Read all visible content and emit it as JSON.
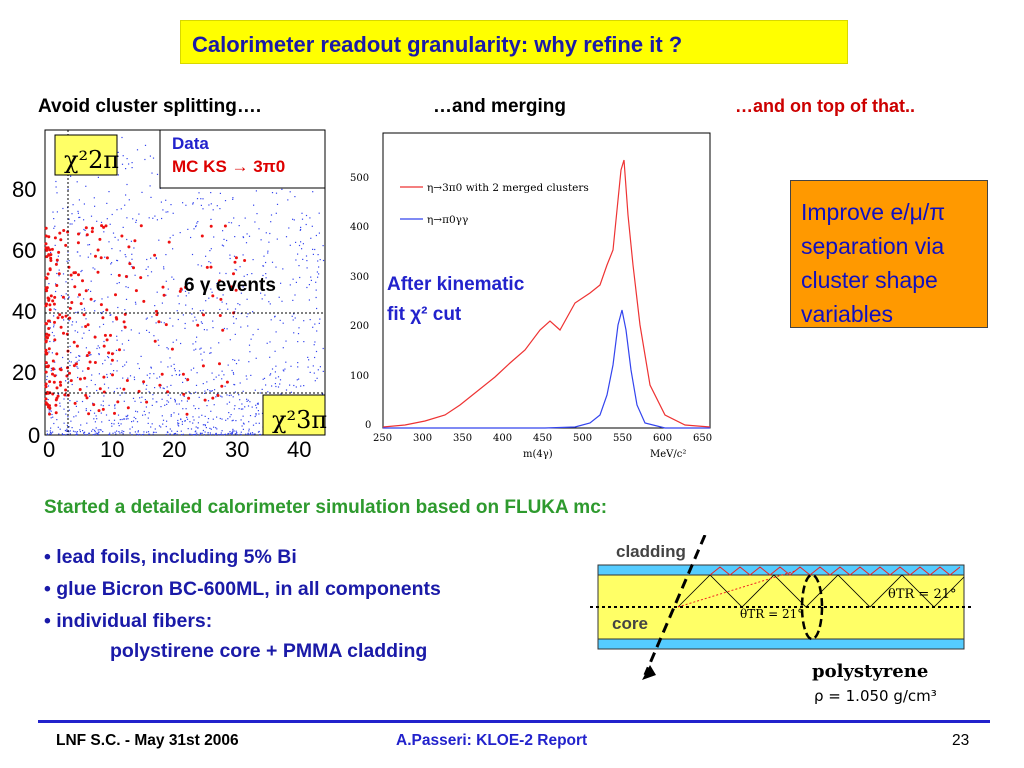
{
  "slide": {
    "title": "Calorimeter readout granularity: why refine it ?",
    "col1_heading": "Avoid cluster splitting….",
    "col2_heading": "…and merging",
    "col3_heading": "…and on top of that..",
    "colors": {
      "title_bg": "#ffff00",
      "title_text": "#1a1aa8",
      "heading3": "#cc0000",
      "green": "#2e9a2e",
      "orange_box": "#ff9900",
      "blue": "#2222cc"
    }
  },
  "plot1": {
    "y_ticks": [
      "80",
      "60",
      "40",
      "20",
      "0"
    ],
    "x_ticks": [
      "0",
      "10",
      "20",
      "30",
      "40"
    ],
    "chi_2pi": "χ²2π",
    "chi_3pi": "χ²3π",
    "legend_data": "Data",
    "legend_mc": "MC KS → 3π0",
    "events_label": "6 γ events"
  },
  "plot2": {
    "legend_red": "η→3π0 with 2 merged clusters",
    "legend_blue": "η→π0γγ",
    "y_ticks": [
      "500",
      "400",
      "300",
      "200",
      "100",
      "0"
    ],
    "x_ticks": [
      "250",
      "300",
      "350",
      "400",
      "450",
      "500",
      "550",
      "600",
      "650"
    ],
    "xlabel": "m(4γ)",
    "xunit": "MeV/c²",
    "annotation_line1": "After kinematic",
    "annotation_line2": "fit χ² cut"
  },
  "right_box": {
    "line1": "Improve e/μ/π",
    "line2": "separation via",
    "line3": "cluster shape",
    "line4": "variables"
  },
  "simulation": {
    "heading": "Started a detailed calorimeter simulation based on FLUKA mc:",
    "bullets": [
      "lead foils, including 5% Bi",
      "glue Bicron BC-600ML, in all components",
      "individual fibers:"
    ],
    "sub_bullet": "polystirene core + PMMA cladding"
  },
  "fiber_diagram": {
    "cladding_label": "cladding",
    "core_label": "core",
    "angle_label_1": "θTR = 21°",
    "angle_label_2": "θTR = 21°",
    "material": "polystyrene",
    "density": "ρ = 1.050 g/cm³"
  },
  "footer": {
    "left": "LNF S.C. - May 31st 2006",
    "center": "A.Passeri: KLOE-2 Report",
    "page": "23"
  }
}
